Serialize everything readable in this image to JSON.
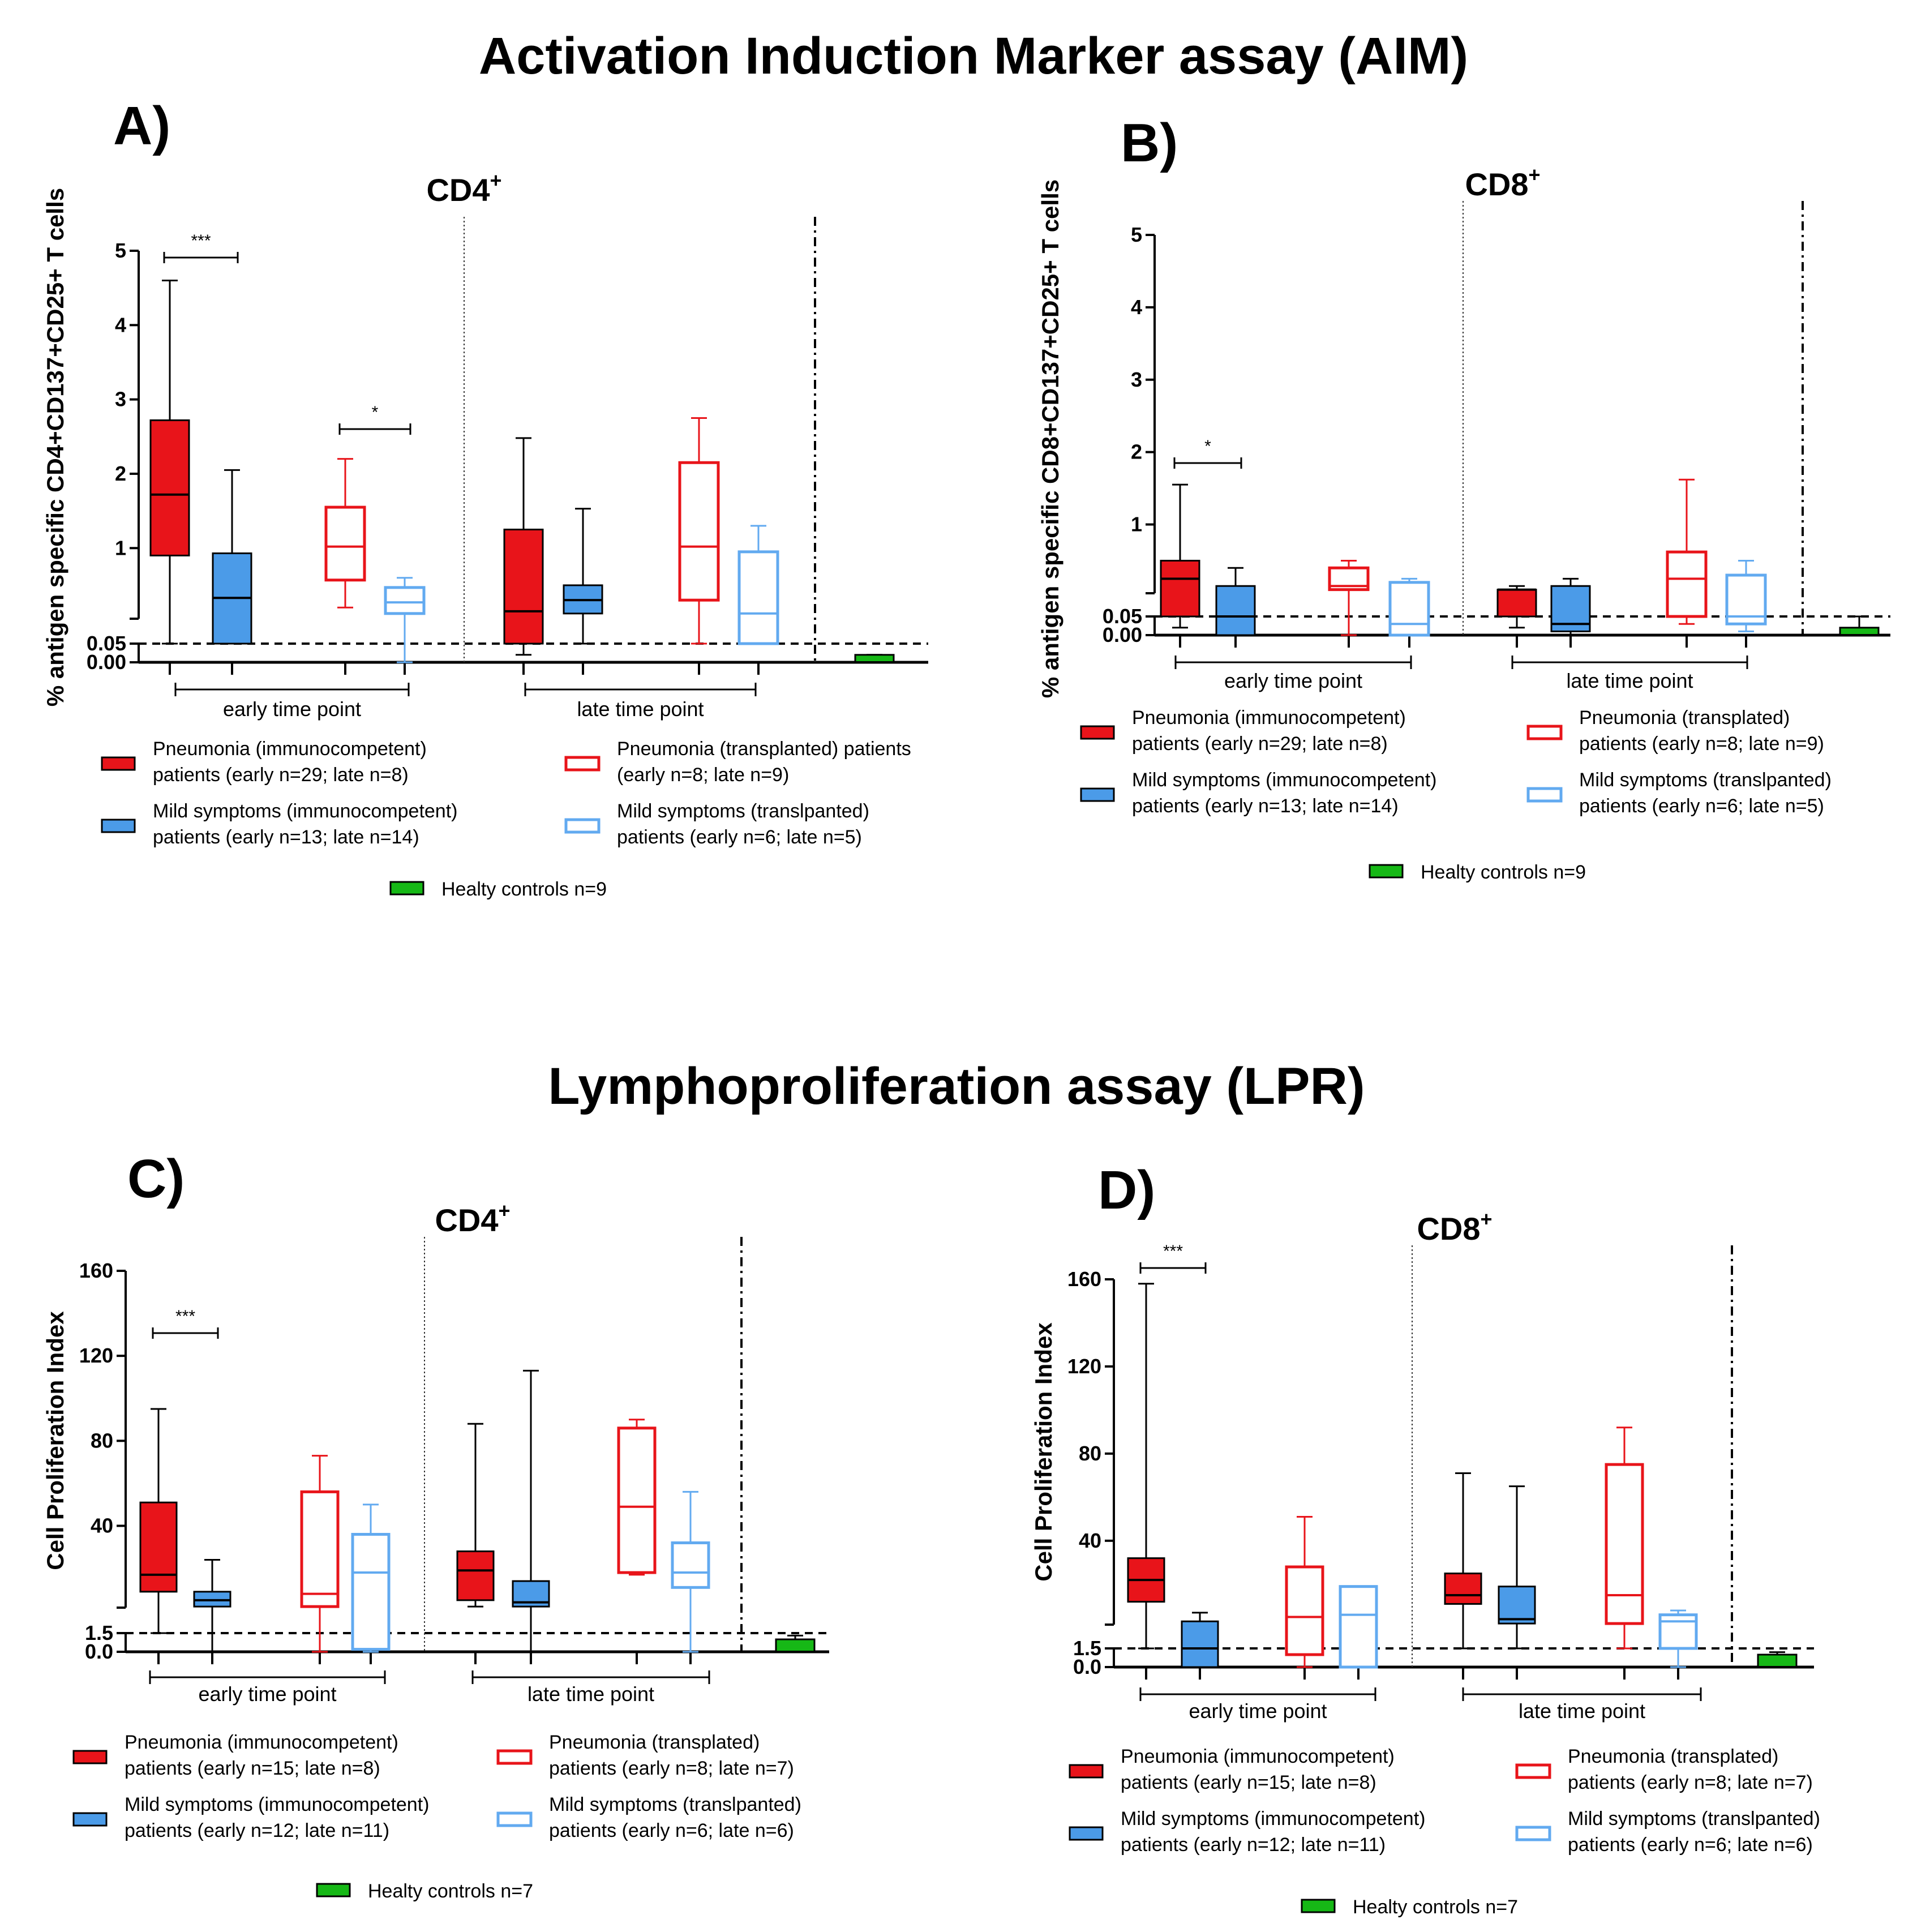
{
  "titles": {
    "aim": "Activation Induction Marker assay (AIM)",
    "lpr": "Lymphoproliferation assay (LPR)"
  },
  "colors": {
    "pneumonia_immunocompetent": "#e8141a",
    "mild_immunocompetent": "#4b9be8",
    "pneumonia_transplanted": "#e8141a",
    "mild_transplanted": "#62aaf0",
    "healthy": "#16b816",
    "line": "#000000"
  },
  "chart_data": [
    {
      "id": "A",
      "type": "box",
      "letter": "A)",
      "title": "CD4",
      "title_sup": "+",
      "ylabel": "% antigen specific CD4+CD137+CD25+ T cells",
      "ytick_labels": [
        "5",
        "4",
        "3",
        "2",
        "1",
        "0.05",
        "0.00"
      ],
      "threshold": 0.05,
      "groups": [
        "early time point",
        "late time point"
      ],
      "significance": [
        {
          "label": "***",
          "between": [
            "early: Pneumonia (immunocompetent)",
            "early: Mild symptoms (immunocompetent)"
          ]
        },
        {
          "label": "*",
          "between": [
            "early: Pneumonia (transplanted)",
            "early: Mild symptoms (transplanted)"
          ]
        }
      ],
      "boxes": [
        {
          "group": "early time point",
          "series": "Pneumonia (immunocompetent)",
          "min": 0.05,
          "q1": 0.9,
          "median": 1.72,
          "q3": 2.72,
          "max": 4.6
        },
        {
          "group": "early time point",
          "series": "Mild symptoms (immunocompetent)",
          "min": 0.05,
          "q1": 0.05,
          "median": 0.33,
          "q3": 0.93,
          "max": 2.05
        },
        {
          "group": "early time point",
          "series": "Pneumonia (transplanted)",
          "min": 0.2,
          "q1": 0.57,
          "median": 1.02,
          "q3": 1.55,
          "max": 2.2
        },
        {
          "group": "early time point",
          "series": "Mild symptoms (transplanted)",
          "min": 0.0,
          "q1": 0.12,
          "median": 0.27,
          "q3": 0.47,
          "max": 0.6
        },
        {
          "group": "late time point",
          "series": "Pneumonia (immunocompetent)",
          "min": 0.02,
          "q1": 0.05,
          "median": 0.15,
          "q3": 1.25,
          "max": 2.48
        },
        {
          "group": "late time point",
          "series": "Mild symptoms (immunocompetent)",
          "min": 0.05,
          "q1": 0.12,
          "median": 0.3,
          "q3": 0.5,
          "max": 1.53
        },
        {
          "group": "late time point",
          "series": "Pneumonia (transplanted)",
          "min": 0.05,
          "q1": 0.3,
          "median": 1.02,
          "q3": 2.15,
          "max": 2.75
        },
        {
          "group": "late time point",
          "series": "Mild symptoms (transplanted)",
          "min": 0.05,
          "q1": 0.05,
          "median": 0.12,
          "q3": 0.95,
          "max": 1.3
        },
        {
          "group": "controls",
          "series": "Healty controls",
          "min": 0.0,
          "q1": 0.0,
          "median": 0.0,
          "q3": 0.02,
          "max": 0.02
        }
      ],
      "legend": [
        {
          "key": "pneumonia_immunocompetent",
          "filled": true,
          "line1": "Pneumonia (immunocompetent)",
          "line2": "patients (early n=29; late n=8)"
        },
        {
          "key": "pneumonia_transplanted",
          "filled": false,
          "line1": "Pneumonia (transplanted) patients",
          "line2": "(early n=8; late n=9)"
        },
        {
          "key": "mild_immunocompetent",
          "filled": true,
          "line1": "Mild symptoms (immunocompetent)",
          "line2": "patients (early n=13; late n=14)"
        },
        {
          "key": "mild_transplanted",
          "filled": false,
          "line1": "Mild symptoms (translpanted)",
          "line2": "patients (early n=6; late n=5)"
        },
        {
          "key": "healthy",
          "filled": true,
          "line1": "Healty controls n=9",
          "line2": ""
        }
      ]
    },
    {
      "id": "B",
      "type": "box",
      "letter": "B)",
      "title": "CD8",
      "title_sup": "+",
      "ylabel": "% antigen specific CD8+CD137+CD25+ T cells",
      "ytick_labels": [
        "5",
        "4",
        "3",
        "2",
        "1",
        "0.05",
        "0.00"
      ],
      "threshold": 0.05,
      "groups": [
        "early time point",
        "late time point"
      ],
      "significance": [
        {
          "label": "*",
          "between": [
            "early: Pneumonia (immunocompetent)",
            "early: Mild symptoms (immunocompetent)"
          ]
        }
      ],
      "boxes": [
        {
          "group": "early time point",
          "series": "Pneumonia (immunocompetent)",
          "min": 0.02,
          "q1": 0.05,
          "median": 0.25,
          "q3": 0.5,
          "max": 1.55
        },
        {
          "group": "early time point",
          "series": "Mild symptoms (immunocompetent)",
          "min": 0.0,
          "q1": 0.0,
          "median": 0.05,
          "q3": 0.15,
          "max": 0.4
        },
        {
          "group": "early time point",
          "series": "Pneumonia (transplanted)",
          "min": 0.0,
          "q1": 0.1,
          "median": 0.15,
          "q3": 0.4,
          "max": 0.5
        },
        {
          "group": "early time point",
          "series": "Mild symptoms (transplanted)",
          "min": 0.0,
          "q1": 0.0,
          "median": 0.03,
          "q3": 0.2,
          "max": 0.25
        },
        {
          "group": "late time point",
          "series": "Pneumonia (immunocompetent)",
          "min": 0.02,
          "q1": 0.05,
          "median": 0.1,
          "q3": 0.1,
          "max": 0.15
        },
        {
          "group": "late time point",
          "series": "Mild symptoms (immunocompetent)",
          "min": 0.0,
          "q1": 0.01,
          "median": 0.03,
          "q3": 0.15,
          "max": 0.25
        },
        {
          "group": "late time point",
          "series": "Pneumonia (transplanted)",
          "min": 0.03,
          "q1": 0.05,
          "median": 0.25,
          "q3": 0.62,
          "max": 1.62
        },
        {
          "group": "late time point",
          "series": "Mild symptoms (transplanted)",
          "min": 0.01,
          "q1": 0.03,
          "median": 0.05,
          "q3": 0.3,
          "max": 0.5
        },
        {
          "group": "controls",
          "series": "Healty controls",
          "min": 0.0,
          "q1": 0.0,
          "median": 0.0,
          "q3": 0.02,
          "max": 0.05
        }
      ],
      "legend": [
        {
          "key": "pneumonia_immunocompetent",
          "filled": true,
          "line1": "Pneumonia (immunocompetent)",
          "line2": "patients (early n=29; late n=8)"
        },
        {
          "key": "pneumonia_transplanted",
          "filled": false,
          "line1": "Pneumonia (transplated)",
          "line2": "patients (early n=8; late n=9)"
        },
        {
          "key": "mild_immunocompetent",
          "filled": true,
          "line1": "Mild symptoms (immunocompetent)",
          "line2": "patients (early n=13; late n=14)"
        },
        {
          "key": "mild_transplanted",
          "filled": false,
          "line1": "Mild symptoms (translpanted)",
          "line2": "patients (early n=6; late n=5)"
        },
        {
          "key": "healthy",
          "filled": true,
          "line1": "Healty controls n=9",
          "line2": ""
        }
      ]
    },
    {
      "id": "C",
      "type": "box",
      "letter": "C)",
      "title": "CD4",
      "title_sup": "+",
      "ylabel": "Cell Proliferation Index",
      "ytick_labels": [
        "160",
        "120",
        "80",
        "40",
        "1.5",
        "0.0"
      ],
      "threshold": 1.5,
      "groups": [
        "early time point",
        "late time point"
      ],
      "significance": [
        {
          "label": "***",
          "between": [
            "early: Pneumonia (immunocompetent)",
            "early: Mild symptoms (immunocompetent)"
          ]
        }
      ],
      "boxes": [
        {
          "group": "early time point",
          "series": "Pneumonia (immunocompetent)",
          "min": 1.5,
          "q1": 9,
          "median": 17,
          "q3": 51,
          "max": 95
        },
        {
          "group": "early time point",
          "series": "Mild symptoms (immunocompetent)",
          "min": 0.0,
          "q1": 2,
          "median": 5,
          "q3": 9,
          "max": 24
        },
        {
          "group": "early time point",
          "series": "Pneumonia (transplanted)",
          "min": 0.0,
          "q1": 2,
          "median": 8,
          "q3": 56,
          "max": 73
        },
        {
          "group": "early time point",
          "series": "Mild symptoms (transplanted)",
          "min": 0.0,
          "q1": 0.2,
          "median": 18,
          "q3": 36,
          "max": 50
        },
        {
          "group": "late time point",
          "series": "Pneumonia (immunocompetent)",
          "min": 2,
          "q1": 5,
          "median": 19,
          "q3": 28,
          "max": 88
        },
        {
          "group": "late time point",
          "series": "Mild symptoms (immunocompetent)",
          "min": 0.0,
          "q1": 2,
          "median": 4,
          "q3": 14,
          "max": 113
        },
        {
          "group": "late time point",
          "series": "Pneumonia (transplanted)",
          "min": 17,
          "q1": 18,
          "median": 49,
          "q3": 86,
          "max": 90
        },
        {
          "group": "late time point",
          "series": "Mild symptoms (transplanted)",
          "min": 0.0,
          "q1": 11,
          "median": 18,
          "q3": 32,
          "max": 56
        },
        {
          "group": "controls",
          "series": "Healty controls",
          "min": 0.0,
          "q1": 0.0,
          "median": 0.0,
          "q3": 1.0,
          "max": 1.3
        }
      ],
      "legend": [
        {
          "key": "pneumonia_immunocompetent",
          "filled": true,
          "line1": "Pneumonia (immunocompetent)",
          "line2": "patients (early n=15; late n=8)"
        },
        {
          "key": "pneumonia_transplanted",
          "filled": false,
          "line1": "Pneumonia (transplated)",
          "line2": "patients (early n=8; late n=7)"
        },
        {
          "key": "mild_immunocompetent",
          "filled": true,
          "line1": "Mild symptoms (immunocompetent)",
          "line2": "patients (early n=12; late n=11)"
        },
        {
          "key": "mild_transplanted",
          "filled": false,
          "line1": "Mild symptoms (translpanted)",
          "line2": "patients (early n=6; late n=6)"
        },
        {
          "key": "healthy",
          "filled": true,
          "line1": "Healty controls n=7",
          "line2": ""
        }
      ]
    },
    {
      "id": "D",
      "type": "box",
      "letter": "D)",
      "title": "CD8",
      "title_sup": "+",
      "ylabel": "Cell Proliferation Index",
      "ytick_labels": [
        "160",
        "120",
        "80",
        "40",
        "1.5",
        "0.0"
      ],
      "threshold": 1.5,
      "groups": [
        "early time point",
        "late time point"
      ],
      "significance": [
        {
          "label": "***",
          "between": [
            "early: Pneumonia (immunocompetent)",
            "early: Mild symptoms (immunocompetent)"
          ]
        }
      ],
      "boxes": [
        {
          "group": "early time point",
          "series": "Pneumonia (immunocompetent)",
          "min": 1.5,
          "q1": 12,
          "median": 22,
          "q3": 32,
          "max": 158
        },
        {
          "group": "early time point",
          "series": "Mild symptoms (immunocompetent)",
          "min": 0.0,
          "q1": 0.0,
          "median": 1.5,
          "q3": 3,
          "max": 7
        },
        {
          "group": "early time point",
          "series": "Pneumonia (transplanted)",
          "min": 0.0,
          "q1": 1,
          "median": 5,
          "q3": 28,
          "max": 51
        },
        {
          "group": "early time point",
          "series": "Mild symptoms (transplanted)",
          "min": 0.0,
          "q1": 0.0,
          "median": 6,
          "q3": 19,
          "max": 19
        },
        {
          "group": "late time point",
          "series": "Pneumonia (immunocompetent)",
          "min": 1.5,
          "q1": 11,
          "median": 15,
          "q3": 25,
          "max": 71
        },
        {
          "group": "late time point",
          "series": "Mild symptoms (immunocompetent)",
          "min": 1.5,
          "q1": 2,
          "median": 4,
          "q3": 19,
          "max": 65
        },
        {
          "group": "late time point",
          "series": "Pneumonia (transplanted)",
          "min": 1.5,
          "q1": 2,
          "median": 15,
          "q3": 75,
          "max": 92
        },
        {
          "group": "late time point",
          "series": "Mild symptoms (transplanted)",
          "min": 0.0,
          "q1": 1.5,
          "median": 3,
          "q3": 6,
          "max": 8
        },
        {
          "group": "controls",
          "series": "Healty controls",
          "min": 0.0,
          "q1": 0.0,
          "median": 0.0,
          "q3": 1.0,
          "max": 1.2
        }
      ],
      "legend": [
        {
          "key": "pneumonia_immunocompetent",
          "filled": true,
          "line1": "Pneumonia (immunocompetent)",
          "line2": "patients (early n=15; late n=8)"
        },
        {
          "key": "pneumonia_transplanted",
          "filled": false,
          "line1": "Pneumonia (transplated)",
          "line2": "patients (early n=8; late n=7)"
        },
        {
          "key": "mild_immunocompetent",
          "filled": true,
          "line1": "Mild symptoms (immunocompetent)",
          "line2": "patients (early n=12; late n=11)"
        },
        {
          "key": "mild_transplanted",
          "filled": false,
          "line1": "Mild symptoms (translpanted)",
          "line2": "patients (early n=6; late n=6)"
        },
        {
          "key": "healthy",
          "filled": true,
          "line1": "Healty controls n=7",
          "line2": ""
        }
      ]
    }
  ]
}
